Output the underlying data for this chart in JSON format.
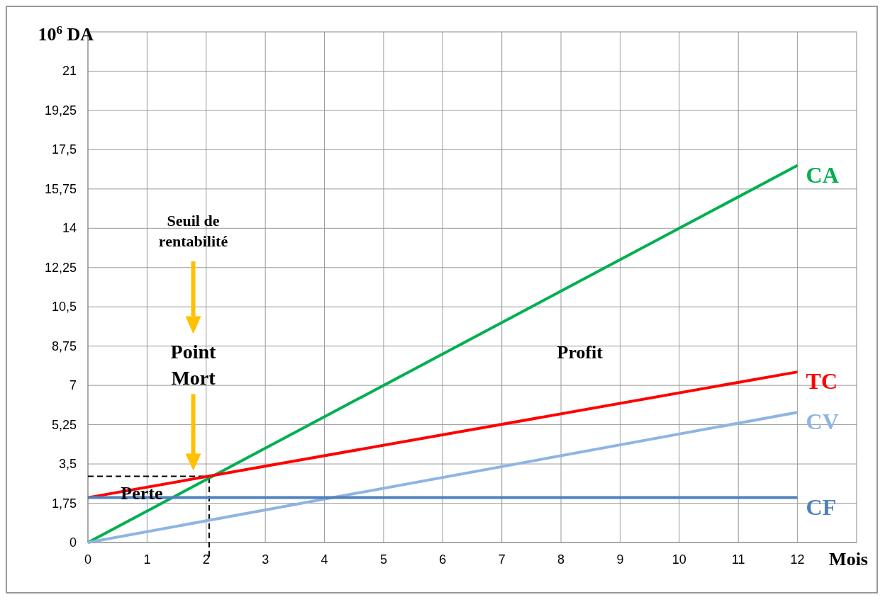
{
  "chart_data": {
    "type": "line",
    "xlabel": "Mois",
    "ylabel": "10$^{6}$ DA",
    "x": [
      0,
      12
    ],
    "series": [
      {
        "name": "CA",
        "color": "#00b050",
        "values": [
          0,
          16.8
        ]
      },
      {
        "name": "TC",
        "color": "#ff0000",
        "values": [
          2,
          7.6
        ]
      },
      {
        "name": "CV",
        "color": "#8eb4e3",
        "values": [
          0,
          5.8
        ]
      },
      {
        "name": "CF",
        "color": "#4f81bd",
        "values": [
          2,
          2
        ]
      }
    ],
    "xlim": [
      0,
      13
    ],
    "xticks": [
      0,
      1,
      2,
      3,
      4,
      5,
      6,
      7,
      8,
      9,
      10,
      11,
      12
    ],
    "ylim": [
      0,
      22.75
    ],
    "yticks": [
      0,
      {
        "value": 1.75,
        "label": "1,75"
      },
      {
        "value": 3.5,
        "label": "3,5"
      },
      {
        "value": 5.25,
        "label": "5,25"
      },
      7,
      {
        "value": 8.75,
        "label": "8,75"
      },
      {
        "value": 10.5,
        "label": "10,5"
      },
      {
        "value": 12.25,
        "label": "12,25"
      },
      14,
      {
        "value": 15.75,
        "label": "15,75"
      },
      {
        "value": 17.5,
        "label": "17,5"
      },
      {
        "value": 19.25,
        "label": "19,25"
      },
      21
    ],
    "ref_lines": [
      {
        "axis": "x",
        "value": 2.05,
        "label": null,
        "line_style": "dashed",
        "color": "#000000"
      },
      {
        "axis": "y",
        "value": 2.95,
        "label": null,
        "line_style": "dashed",
        "color": "#000000"
      }
    ],
    "annotations": [
      "Seuil de rentabilité",
      "Point Mort",
      "Profit",
      "Perte"
    ],
    "grid": true,
    "line_style": "solid",
    "marker": "none"
  }
}
